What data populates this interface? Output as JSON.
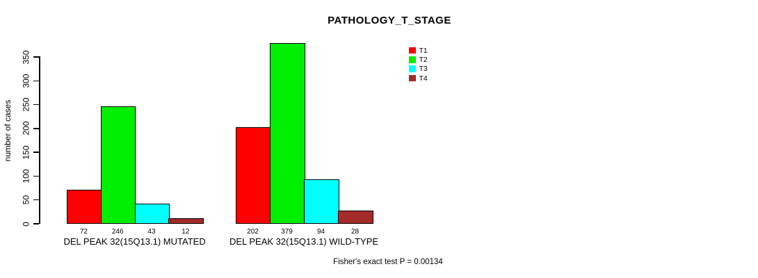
{
  "chart_data": {
    "type": "bar",
    "title": "PATHOLOGY_T_STAGE",
    "ylabel": "number of cases",
    "xlabel": "",
    "groups": [
      "DEL PEAK 32(15Q13.1) MUTATED",
      "DEL PEAK 32(15Q13.1) WILD-TYPE"
    ],
    "series": [
      {
        "name": "T1",
        "color": "#FF0000",
        "values": [
          72,
          202
        ]
      },
      {
        "name": "T2",
        "color": "#00EE00",
        "values": [
          246,
          379
        ]
      },
      {
        "name": "T3",
        "color": "#00FFFF",
        "values": [
          43,
          94
        ]
      },
      {
        "name": "T4",
        "color": "#A52A2A",
        "values": [
          12,
          28
        ]
      }
    ],
    "yticks": [
      0,
      50,
      100,
      150,
      200,
      250,
      300,
      350
    ],
    "ylim": [
      0,
      350
    ],
    "grid": false,
    "legend_position": "top-right",
    "annotation": "Fisher's exact test P = 0.00134"
  }
}
